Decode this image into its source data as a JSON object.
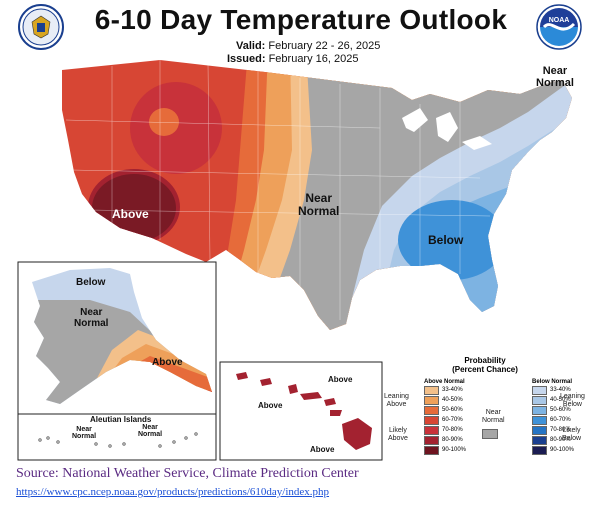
{
  "header": {
    "title": "6-10 Day Temperature Outlook",
    "valid_label": "Valid:",
    "valid_value": "February 22 - 26, 2025",
    "issued_label": "Issued:",
    "issued_value": "February 16, 2025"
  },
  "logos": {
    "left_icon": "department-of-commerce-seal",
    "right_icon": "noaa-logo",
    "right_text": "NOAA"
  },
  "map": {
    "labels": {
      "above_west": "Above",
      "near_normal_central": [
        "Near",
        "Normal"
      ],
      "below_southeast": "Below",
      "near_normal_northeast": [
        "Near",
        "Normal"
      ]
    },
    "alaska": {
      "below": "Below",
      "near_normal": [
        "Near",
        "Normal"
      ],
      "above": "Above"
    },
    "aleutian": {
      "title": "Aleutian Islands",
      "near_normal_1": [
        "Near",
        "Normal"
      ],
      "near_normal_2": [
        "Near",
        "Normal"
      ]
    },
    "hawaii": {
      "above_1": "Above",
      "above_2": "Above",
      "above_3": "Above"
    }
  },
  "legend": {
    "title": [
      "Probability",
      "(Percent Chance)"
    ],
    "above_head": "Above Normal",
    "below_head": "Below Normal",
    "leaning_above": [
      "Leaning",
      "Above"
    ],
    "likely_above": [
      "Likely",
      "Above"
    ],
    "near_normal": [
      "Near",
      "Normal"
    ],
    "leaning_below": [
      "Leaning",
      "Below"
    ],
    "likely_below": [
      "Likely",
      "Below"
    ],
    "ranges": [
      "33-40%",
      "40-50%",
      "50-60%",
      "60-70%",
      "70-80%",
      "80-90%",
      "90-100%"
    ],
    "above_colors": [
      "#f3c08a",
      "#eea05a",
      "#e66b3a",
      "#d74634",
      "#c8323a",
      "#a32230",
      "#6e1420"
    ],
    "below_colors": [
      "#c6d6ec",
      "#a9c7e6",
      "#7db3e2",
      "#3f92d8",
      "#2574c4",
      "#1a3f8f",
      "#1b1c52"
    ],
    "near_color": "#a6a6a6"
  },
  "footer": {
    "source": "Source: National Weather Service, Climate Prediction Center",
    "url": "https://www.cpc.ncep.noaa.gov/products/predictions/610day/index.php"
  }
}
